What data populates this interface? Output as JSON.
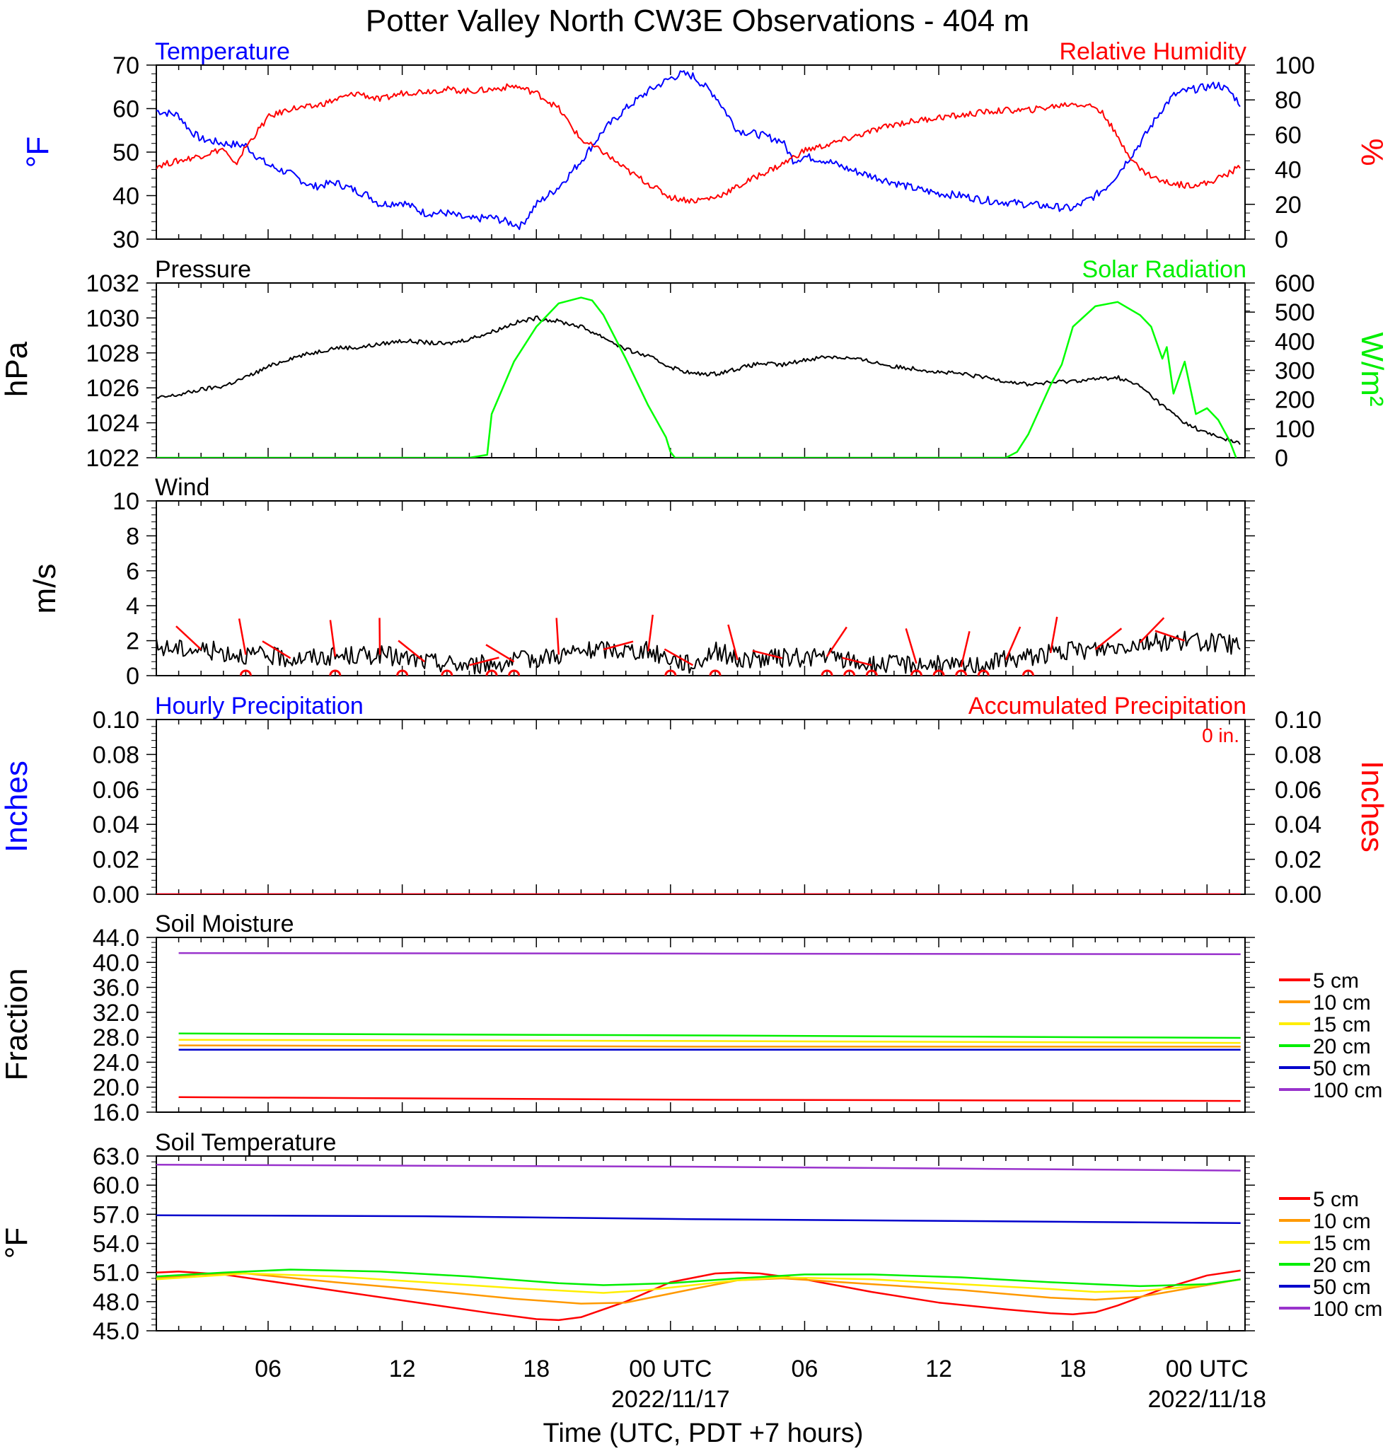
{
  "title": "Potter Valley North CW3E Observations - 404 m",
  "x_axis": {
    "title": "Time (UTC, PDT +7 hours)",
    "tick_labels": [
      "06",
      "12",
      "18",
      "00 UTC",
      "06",
      "12",
      "18",
      "00 UTC"
    ],
    "date_labels": [
      "2022/11/17",
      "2022/11/18"
    ]
  },
  "chart_data": [
    {
      "type": "line",
      "panel": "temperature_humidity",
      "titles": {
        "left": "Temperature",
        "right": "Relative Humidity"
      },
      "left_axis": {
        "label": "°F",
        "range": [
          30,
          70
        ],
        "ticks": [
          "70",
          "60",
          "50",
          "40",
          "30"
        ]
      },
      "right_axis": {
        "label": "%",
        "range": [
          0,
          100
        ],
        "ticks": [
          "100",
          "80",
          "60",
          "40",
          "20",
          "0"
        ]
      },
      "x_unit": "hours since 2022/11/16 01 UTC",
      "series": [
        {
          "name": "Temperature",
          "axis": "left",
          "color": "#0000ff",
          "x": [
            0,
            1,
            1.5,
            2,
            3,
            4,
            4.5,
            5,
            6,
            7,
            8,
            9,
            9.5,
            10,
            11,
            12,
            13,
            14,
            15,
            16,
            16.3,
            17,
            18,
            19,
            20,
            21,
            22,
            23,
            23.5,
            24,
            25,
            25.5,
            26,
            27,
            28,
            28.5,
            29,
            30,
            31,
            32,
            33,
            34,
            35,
            36,
            37,
            38,
            39,
            40,
            41,
            42,
            42.5,
            43,
            44,
            45,
            45.5,
            46,
            47,
            47.5,
            48,
            48.5
          ],
          "y": [
            59.5,
            58.5,
            55,
            53,
            52,
            51.5,
            49,
            47,
            45,
            42,
            43,
            41,
            40,
            38,
            38.5,
            36,
            36,
            34.5,
            35,
            33.5,
            33,
            38,
            42,
            48,
            55,
            60,
            64,
            67,
            68,
            67.5,
            63,
            59,
            55,
            54,
            52.5,
            48,
            49,
            48,
            46,
            44.5,
            43,
            41.5,
            40.5,
            40,
            39,
            38.5,
            38,
            37.5,
            37,
            40,
            42,
            45,
            52,
            60,
            63,
            64,
            65,
            65.5,
            64,
            61
          ]
        },
        {
          "name": "Relative Humidity",
          "axis": "right",
          "color": "#ff0000",
          "x": [
            0,
            1,
            2,
            3,
            3.5,
            4,
            5,
            6,
            7,
            8,
            9,
            10,
            11,
            12,
            13,
            14,
            15,
            16,
            17,
            18,
            19,
            20,
            21,
            22,
            23,
            24,
            25,
            26,
            27,
            28,
            29,
            30,
            31,
            32,
            33,
            34,
            35,
            36,
            37,
            38,
            39,
            40,
            41,
            42,
            42.5,
            43,
            44,
            45,
            46,
            47,
            48,
            48.5
          ],
          "y": [
            42,
            45,
            48,
            52,
            42,
            53,
            70,
            75,
            76,
            80,
            84,
            80,
            84,
            85,
            86,
            85,
            86,
            88,
            84,
            75,
            57,
            50,
            40,
            32,
            24,
            22,
            24,
            30,
            37,
            43,
            51,
            54,
            58,
            62,
            66,
            68,
            70,
            71,
            73,
            74,
            74,
            76,
            78,
            76,
            70,
            58,
            40,
            33,
            31,
            32,
            38,
            42
          ]
        }
      ]
    },
    {
      "type": "line",
      "panel": "pressure_solar",
      "titles": {
        "left": "Pressure",
        "right": "Solar Radiation"
      },
      "left_axis": {
        "label": "hPa",
        "range": [
          1022,
          1032
        ],
        "ticks": [
          "1032",
          "1030",
          "1028",
          "1026",
          "1024",
          "1022"
        ]
      },
      "right_axis": {
        "label": "W/m²",
        "range": [
          0,
          600
        ],
        "ticks": [
          "600",
          "500",
          "400",
          "300",
          "200",
          "100",
          "0"
        ]
      },
      "x_unit": "hours since 2022/11/16 01 UTC",
      "series": [
        {
          "name": "Pressure",
          "axis": "left",
          "color": "#000000",
          "x": [
            0,
            1,
            2,
            3,
            4,
            5,
            6,
            7,
            8,
            9,
            10,
            11,
            12,
            13,
            14,
            15,
            16,
            17,
            18,
            19,
            20,
            21,
            22,
            23,
            24,
            25,
            26,
            27,
            28,
            29,
            30,
            31,
            32,
            33,
            34,
            35,
            36,
            37,
            38,
            39,
            40,
            41,
            42,
            43,
            44,
            45,
            46,
            47,
            48,
            48.5
          ],
          "y": [
            1025.4,
            1025.6,
            1025.9,
            1026.1,
            1026.6,
            1027.2,
            1027.7,
            1028.0,
            1028.3,
            1028.3,
            1028.5,
            1028.7,
            1028.6,
            1028.5,
            1028.8,
            1029.2,
            1029.7,
            1030.0,
            1029.8,
            1029.5,
            1028.9,
            1028.2,
            1027.8,
            1027.2,
            1026.8,
            1026.8,
            1027.1,
            1027.4,
            1027.3,
            1027.6,
            1027.8,
            1027.7,
            1027.5,
            1027.2,
            1027.1,
            1026.9,
            1026.8,
            1026.6,
            1026.4,
            1026.2,
            1026.3,
            1026.4,
            1026.5,
            1026.6,
            1026.1,
            1025.0,
            1024.0,
            1023.4,
            1023.0,
            1022.8
          ]
        },
        {
          "name": "Solar Radiation",
          "axis": "right",
          "color": "#00ff00",
          "x": [
            0,
            14,
            14.8,
            15.0,
            16,
            17,
            18,
            19,
            19.5,
            20,
            21,
            22,
            22.8,
            23,
            23.2,
            24,
            38,
            38.5,
            39,
            40,
            40.5,
            41,
            42,
            43,
            44,
            44.5,
            45,
            45.2,
            45.5,
            46,
            46.5,
            47,
            47.5,
            48,
            48.3
          ],
          "y": [
            0,
            0,
            10,
            150,
            330,
            450,
            530,
            550,
            540,
            490,
            340,
            180,
            70,
            20,
            0,
            0,
            0,
            20,
            80,
            250,
            320,
            450,
            520,
            535,
            490,
            450,
            340,
            380,
            220,
            330,
            150,
            170,
            130,
            60,
            0
          ]
        }
      ]
    },
    {
      "type": "line",
      "panel": "wind",
      "titles": {
        "left": "Wind"
      },
      "left_axis": {
        "label": "m/s",
        "range": [
          0,
          10
        ],
        "ticks": [
          "10",
          "8",
          "6",
          "4",
          "2",
          "0"
        ]
      },
      "x_unit": "hours since 2022/11/16 01 UTC",
      "series": [
        {
          "name": "Wind speed",
          "axis": "left",
          "color": "#000000",
          "x": [
            0,
            2,
            4,
            6,
            8,
            10,
            12,
            14,
            16,
            18,
            20,
            22,
            24,
            25,
            26,
            28,
            30,
            32,
            34,
            36,
            38,
            40,
            42,
            44,
            46,
            48,
            48.5
          ],
          "y": [
            1.6,
            1.5,
            1.2,
            1.0,
            1.1,
            1.2,
            0.8,
            0.6,
            0.8,
            1.2,
            1.5,
            1.4,
            0.6,
            1.5,
            0.9,
            1.0,
            1.1,
            0.6,
            0.7,
            0.5,
            0.9,
            1.3,
            1.5,
            1.9,
            2.0,
            1.8,
            1.6
          ]
        }
      ],
      "barb_hours": [
        2,
        4,
        6,
        8,
        10,
        12,
        14,
        16,
        18,
        20,
        22,
        24,
        26,
        28,
        30,
        32,
        34,
        36,
        38,
        40,
        42,
        44,
        46
      ],
      "calm_circle_hours": [
        4,
        8,
        11,
        13,
        15,
        16,
        23,
        25,
        30,
        31,
        32,
        34,
        35,
        36,
        37,
        39
      ]
    },
    {
      "type": "line",
      "panel": "precipitation",
      "titles": {
        "left": "Hourly Precipitation",
        "right": "Accumulated Precipitation"
      },
      "annotation": "0 in.",
      "left_axis": {
        "label": "Inches",
        "range": [
          0,
          0.1
        ],
        "ticks": [
          "0.10",
          "0.08",
          "0.06",
          "0.04",
          "0.02",
          "0.00"
        ]
      },
      "right_axis": {
        "label": "Inches",
        "range": [
          0,
          0.1
        ],
        "ticks": [
          "0.10",
          "0.08",
          "0.06",
          "0.04",
          "0.02",
          "0.00"
        ]
      },
      "series": [
        {
          "name": "Hourly Precipitation",
          "axis": "left",
          "color": "#0000ff",
          "x": [
            0,
            48.5
          ],
          "y": [
            0,
            0
          ]
        },
        {
          "name": "Accumulated Precipitation",
          "axis": "right",
          "color": "#ff0000",
          "x": [
            0,
            48.5
          ],
          "y": [
            0,
            0
          ]
        }
      ]
    },
    {
      "type": "line",
      "panel": "soil_moisture",
      "titles": {
        "left": "Soil Moisture"
      },
      "left_axis": {
        "label": "Fraction",
        "range": [
          16,
          44
        ],
        "ticks": [
          "44.0",
          "40.0",
          "36.0",
          "32.0",
          "28.0",
          "24.0",
          "20.0",
          "16.0"
        ]
      },
      "legend": [
        "5 cm",
        "10 cm",
        "15 cm",
        "20 cm",
        "50 cm",
        "100 cm"
      ],
      "series": [
        {
          "name": "5 cm",
          "color": "#ff0000",
          "x": [
            1,
            24,
            48.5
          ],
          "y": [
            18.4,
            18.0,
            17.8
          ]
        },
        {
          "name": "10 cm",
          "color": "#ff9900",
          "x": [
            1,
            24,
            48.5
          ],
          "y": [
            26.7,
            26.5,
            26.5
          ]
        },
        {
          "name": "15 cm",
          "color": "#ffee00",
          "x": [
            1,
            24,
            48.5
          ],
          "y": [
            27.6,
            27.4,
            27.1
          ]
        },
        {
          "name": "20 cm",
          "color": "#00ee00",
          "x": [
            1,
            24,
            48.5
          ],
          "y": [
            28.6,
            28.3,
            27.9
          ]
        },
        {
          "name": "50 cm",
          "color": "#0000cc",
          "x": [
            1,
            24,
            48.5
          ],
          "y": [
            26.0,
            26.0,
            26.0
          ]
        },
        {
          "name": "100 cm",
          "color": "#9933cc",
          "x": [
            1,
            24,
            48.5
          ],
          "y": [
            41.5,
            41.4,
            41.3
          ]
        }
      ]
    },
    {
      "type": "line",
      "panel": "soil_temperature",
      "titles": {
        "left": "Soil Temperature"
      },
      "left_axis": {
        "label": "°F",
        "range": [
          45,
          63
        ],
        "ticks": [
          "63.0",
          "60.0",
          "57.0",
          "54.0",
          "51.0",
          "48.0",
          "45.0"
        ]
      },
      "legend": [
        "5 cm",
        "10 cm",
        "15 cm",
        "20 cm",
        "50 cm",
        "100 cm"
      ],
      "series": [
        {
          "name": "5 cm",
          "color": "#ff0000",
          "x": [
            0,
            1,
            3,
            6,
            9,
            12,
            15,
            17,
            18,
            19,
            21,
            23,
            25,
            26,
            27,
            29,
            32,
            35,
            38,
            40,
            41,
            42,
            43,
            45,
            47,
            48.5
          ],
          "y": [
            51.0,
            51.1,
            50.8,
            49.8,
            48.8,
            47.8,
            46.8,
            46.2,
            46.1,
            46.4,
            48.0,
            50.0,
            50.9,
            51.0,
            50.9,
            50.3,
            49.0,
            47.9,
            47.2,
            46.8,
            46.7,
            46.9,
            47.6,
            49.3,
            50.7,
            51.2
          ]
        },
        {
          "name": "10 cm",
          "color": "#ff9900",
          "x": [
            0,
            2,
            4,
            8,
            12,
            16,
            19,
            21,
            24,
            26,
            28,
            32,
            36,
            40,
            42,
            44,
            46,
            48,
            48.5
          ],
          "y": [
            50.4,
            50.8,
            50.9,
            50.0,
            49.2,
            48.3,
            47.8,
            47.9,
            49.3,
            50.2,
            50.4,
            49.8,
            49.2,
            48.4,
            48.2,
            48.5,
            49.3,
            50.1,
            50.3
          ]
        },
        {
          "name": "15 cm",
          "color": "#ffee00",
          "x": [
            0,
            4,
            8,
            12,
            16,
            20,
            22,
            26,
            28,
            32,
            36,
            40,
            42,
            44,
            46,
            48,
            48.5
          ],
          "y": [
            50.3,
            50.9,
            50.6,
            50.0,
            49.4,
            48.9,
            49.2,
            50.2,
            50.5,
            50.3,
            49.8,
            49.3,
            49.0,
            49.1,
            49.5,
            50.1,
            50.3
          ]
        },
        {
          "name": "20 cm",
          "color": "#00ee00",
          "x": [
            0,
            3,
            6,
            10,
            14,
            18,
            20,
            23,
            26,
            29,
            32,
            36,
            40,
            44,
            47,
            48.5
          ],
          "y": [
            50.6,
            51.0,
            51.3,
            51.1,
            50.6,
            49.9,
            49.7,
            49.9,
            50.4,
            50.8,
            50.8,
            50.5,
            50.0,
            49.6,
            49.8,
            50.3
          ]
        },
        {
          "name": "50 cm",
          "color": "#0000cc",
          "x": [
            0,
            12,
            24,
            36,
            48.5
          ],
          "y": [
            56.9,
            56.8,
            56.5,
            56.3,
            56.1
          ]
        },
        {
          "name": "100 cm",
          "color": "#9933cc",
          "x": [
            0,
            12,
            24,
            36,
            48.5
          ],
          "y": [
            62.1,
            62.0,
            61.9,
            61.7,
            61.5
          ]
        }
      ]
    }
  ],
  "colors": {
    "temperature": "#0000ff",
    "humidity": "#ff0000",
    "pressure": "#000000",
    "solar": "#00ff00",
    "wind": "#000000",
    "barbs": "#ff0000"
  }
}
